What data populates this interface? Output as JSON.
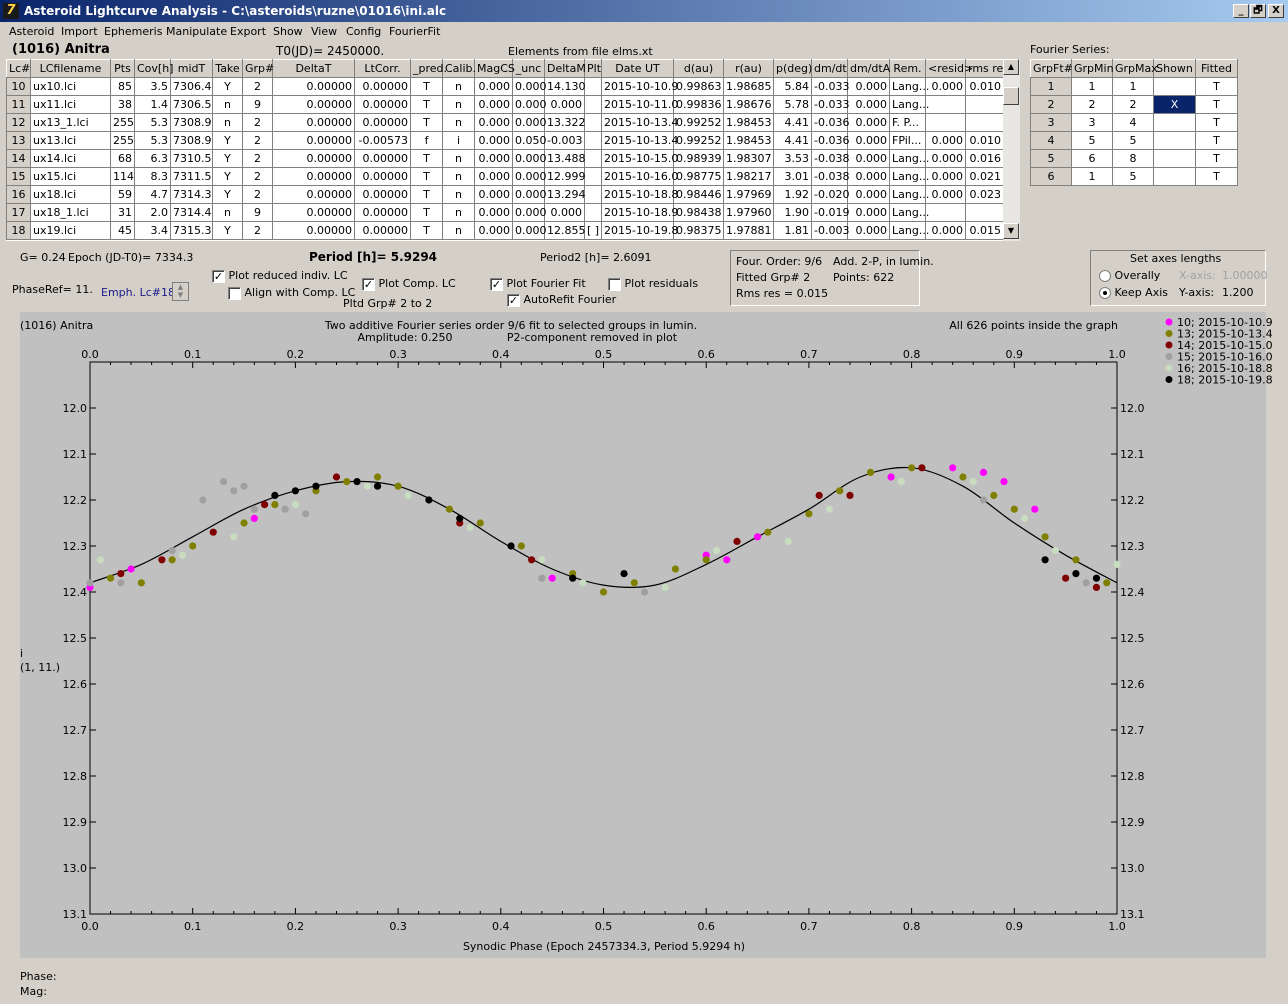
{
  "window": {
    "title": "Asteroid Lightcurve Analysis - C:\\asteroids\\ruzne\\01016\\ini.alc",
    "minimize": "_",
    "maximize": "🗗",
    "close": "X"
  },
  "menu": [
    "Asteroid",
    "Import",
    "Ephemeris",
    "Manipulate",
    "Export",
    "Show",
    "View",
    "Config",
    "FourierFit"
  ],
  "header": {
    "asteroid": "(1016) Anitra",
    "t0": "T0(JD)= 2450000.",
    "elements": "Elements from file elms.xt",
    "fourier_title": "Fourier Series:"
  },
  "lc_table": {
    "columns": [
      "Lc#",
      "LCfilename",
      "Pts",
      "Cov[h]",
      "midT",
      "Take",
      "Grp#",
      "DeltaT",
      "LtCorr.",
      "_pred.",
      "Calib.",
      "MagCS",
      "_unc",
      "DeltaM",
      "Plt",
      "Date UT",
      "d(au)",
      "r(au)",
      "p(deg)",
      "dm/dt",
      "dm/dtA",
      "Rem.",
      "<resid>",
      "rms res"
    ],
    "rows": [
      [
        "10",
        "ux10.lci",
        "85",
        "3.5",
        "7306.4",
        "Y",
        "2",
        "0.00000",
        "0.00000",
        "T",
        "n",
        "0.000",
        "0.000",
        "14.130",
        "",
        "2015-10-10.9",
        "0.99863",
        "1.98685",
        "5.84",
        "-0.033",
        "0.000",
        "Lang...",
        "0.000",
        "0.010"
      ],
      [
        "11",
        "ux11.lci",
        "38",
        "1.4",
        "7306.5",
        "n",
        "9",
        "0.00000",
        "0.00000",
        "T",
        "n",
        "0.000",
        "0.000",
        "0.000",
        "",
        "2015-10-11.0",
        "0.99836",
        "1.98676",
        "5.78",
        "-0.033",
        "0.000",
        "Lang...",
        "",
        ""
      ],
      [
        "12",
        "ux13_1.lci",
        "255",
        "5.3",
        "7308.9",
        "n",
        "2",
        "0.00000",
        "0.00000",
        "T",
        "n",
        "0.000",
        "0.000",
        "13.322",
        "",
        "2015-10-13.4",
        "0.99252",
        "1.98453",
        "4.41",
        "-0.036",
        "0.000",
        "F. P...",
        "",
        ""
      ],
      [
        "13",
        "ux13.lci",
        "255",
        "5.3",
        "7308.9",
        "Y",
        "2",
        "0.00000",
        "-0.00573",
        "f",
        "i",
        "0.000",
        "0.050",
        "-0.003",
        "",
        "2015-10-13.4",
        "0.99252",
        "1.98453",
        "4.41",
        "-0.036",
        "0.000",
        "FPil...",
        "0.000",
        "0.010"
      ],
      [
        "14",
        "ux14.lci",
        "68",
        "6.3",
        "7310.5",
        "Y",
        "2",
        "0.00000",
        "0.00000",
        "T",
        "n",
        "0.000",
        "0.000",
        "13.488",
        "",
        "2015-10-15.0",
        "0.98939",
        "1.98307",
        "3.53",
        "-0.038",
        "0.000",
        "Lang...",
        "0.000",
        "0.016"
      ],
      [
        "15",
        "ux15.lci",
        "114",
        "8.3",
        "7311.5",
        "Y",
        "2",
        "0.00000",
        "0.00000",
        "T",
        "n",
        "0.000",
        "0.000",
        "12.999",
        "",
        "2015-10-16.0",
        "0.98775",
        "1.98217",
        "3.01",
        "-0.038",
        "0.000",
        "Lang...",
        "0.000",
        "0.021"
      ],
      [
        "16",
        "ux18.lci",
        "59",
        "4.7",
        "7314.3",
        "Y",
        "2",
        "0.00000",
        "0.00000",
        "T",
        "n",
        "0.000",
        "0.000",
        "13.294",
        "",
        "2015-10-18.8",
        "0.98446",
        "1.97969",
        "1.92",
        "-0.020",
        "0.000",
        "Lang...",
        "0.000",
        "0.023"
      ],
      [
        "17",
        "ux18_1.lci",
        "31",
        "2.0",
        "7314.4",
        "n",
        "9",
        "0.00000",
        "0.00000",
        "T",
        "n",
        "0.000",
        "0.000",
        "0.000",
        "",
        "2015-10-18.9",
        "0.98438",
        "1.97960",
        "1.90",
        "-0.019",
        "0.000",
        "Lang...",
        "",
        ""
      ],
      [
        "18",
        "ux19.lci",
        "45",
        "3.4",
        "7315.3",
        "Y",
        "2",
        "0.00000",
        "0.00000",
        "T",
        "n",
        "0.000",
        "0.000",
        "12.855",
        "[ ]",
        "2015-10-19.8",
        "0.98375",
        "1.97881",
        "1.81",
        "-0.003",
        "0.000",
        "Lang...",
        "0.000",
        "0.015"
      ]
    ]
  },
  "fourier_table": {
    "columns": [
      "GrpFt#",
      "GrpMin",
      "GrpMax",
      "Shown",
      "Fitted"
    ],
    "rows": [
      [
        "1",
        "1",
        "1",
        "",
        "T"
      ],
      [
        "2",
        "2",
        "2",
        "X",
        "T"
      ],
      [
        "3",
        "3",
        "4",
        "",
        "T"
      ],
      [
        "4",
        "5",
        "5",
        "",
        "T"
      ],
      [
        "5",
        "6",
        "8",
        "",
        "T"
      ],
      [
        "6",
        "1",
        "5",
        "",
        "T"
      ]
    ]
  },
  "controls": {
    "g": "G= 0.24",
    "epoch": "Epoch (JD-T0)= 7334.3",
    "period": "Period [h]= 5.9294",
    "period2": "Period2 [h]= 2.6091",
    "phaseref": "PhaseRef= 11.",
    "emph": "Emph. Lc#18:",
    "plot_reduced": "Plot reduced indiv. LC",
    "align_comp": "Align with Comp. LC",
    "plot_comp": "Plot Comp. LC",
    "pltd_grp": "Pltd Grp#  2  to   2",
    "plot_fourier": "Plot Fourier Fit",
    "autorefit": "AutoRefit Fourier",
    "plot_resid": "Plot residuals",
    "four_order": "Four. Order:  9/6",
    "add2p": "Add. 2-P, in lumin.",
    "fitted_grp": "Fitted Grp# 2",
    "points": "Points: 622",
    "rms": "Rms res     = 0.015",
    "axes_title": "Set axes lengths",
    "overally": "Overally",
    "keep_axis": "Keep Axis",
    "xaxis_lbl": "X-axis:",
    "xaxis_val": "1.00000",
    "yaxis_lbl": "Y-axis:",
    "yaxis_val": "1.200"
  },
  "plot": {
    "name": "(1016) Anitra",
    "line1": "Two additive Fourier series order 9/6 fit to selected groups in lumin.",
    "amplitude": "Amplitude: 0.250",
    "p2": "P2-component removed in plot",
    "inside": "All 626 points inside the graph",
    "ylabel1": "i",
    "ylabel2": "(1, 11.)",
    "xlabel": "Synodic Phase (Epoch 2457334.3, Period 5.9294 h)"
  },
  "status": {
    "phase": "Phase:",
    "mag": "Mag:"
  },
  "chart_data": {
    "type": "scatter",
    "xlim": [
      0,
      1
    ],
    "ylim": [
      13.1,
      11.9
    ],
    "y_inverted": true,
    "x_ticks": [
      "0.0",
      "0.1",
      "0.2",
      "0.3",
      "0.4",
      "0.5",
      "0.6",
      "0.7",
      "0.8",
      "0.9",
      "1.0"
    ],
    "y_ticks": [
      "12.0",
      "12.1",
      "12.2",
      "12.3",
      "12.4",
      "12.5",
      "12.6",
      "12.7",
      "12.8",
      "12.9",
      "13.0",
      "13.1"
    ],
    "fit_curve": {
      "x": [
        0,
        0.05,
        0.1,
        0.15,
        0.2,
        0.25,
        0.3,
        0.35,
        0.4,
        0.45,
        0.5,
        0.55,
        0.6,
        0.65,
        0.7,
        0.75,
        0.8,
        0.85,
        0.9,
        0.95,
        1.0
      ],
      "y": [
        12.38,
        12.34,
        12.28,
        12.22,
        12.18,
        12.16,
        12.17,
        12.22,
        12.29,
        12.35,
        12.385,
        12.385,
        12.34,
        12.28,
        12.22,
        12.15,
        12.13,
        12.17,
        12.25,
        12.32,
        12.38
      ]
    },
    "series": [
      {
        "name": "10; 2015-10-10.9",
        "color": "#ff00ff",
        "x": [
          0.0,
          0.04,
          0.16,
          0.45,
          0.6,
          0.62,
          0.65,
          0.78,
          0.84,
          0.87,
          0.89,
          0.92
        ],
        "y": [
          12.39,
          12.35,
          12.24,
          12.37,
          12.32,
          12.33,
          12.28,
          12.15,
          12.13,
          12.14,
          12.16,
          12.22
        ]
      },
      {
        "name": "13; 2015-10-13.4",
        "color": "#808000",
        "x": [
          0.02,
          0.05,
          0.08,
          0.1,
          0.15,
          0.18,
          0.22,
          0.25,
          0.28,
          0.3,
          0.35,
          0.38,
          0.42,
          0.47,
          0.5,
          0.53,
          0.57,
          0.6,
          0.66,
          0.7,
          0.73,
          0.76,
          0.8,
          0.85,
          0.88,
          0.9,
          0.93,
          0.96,
          0.99
        ],
        "y": [
          12.37,
          12.38,
          12.33,
          12.3,
          12.25,
          12.21,
          12.18,
          12.16,
          12.15,
          12.17,
          12.22,
          12.25,
          12.3,
          12.36,
          12.4,
          12.38,
          12.35,
          12.33,
          12.27,
          12.23,
          12.18,
          12.14,
          12.13,
          12.15,
          12.19,
          12.22,
          12.28,
          12.33,
          12.38
        ]
      },
      {
        "name": "14; 2015-10-15.0",
        "color": "#800000",
        "x": [
          0.03,
          0.07,
          0.12,
          0.17,
          0.24,
          0.36,
          0.43,
          0.63,
          0.71,
          0.74,
          0.81,
          0.95,
          0.98
        ],
        "y": [
          12.36,
          12.33,
          12.27,
          12.21,
          12.15,
          12.25,
          12.33,
          12.29,
          12.19,
          12.19,
          12.13,
          12.37,
          12.39
        ]
      },
      {
        "name": "15; 2015-10-16.0",
        "color": "#a0a0a0",
        "x": [
          0.0,
          0.03,
          0.08,
          0.11,
          0.13,
          0.14,
          0.15,
          0.16,
          0.19,
          0.21,
          0.44,
          0.54,
          0.87,
          0.97
        ],
        "y": [
          12.38,
          12.38,
          12.31,
          12.2,
          12.16,
          12.18,
          12.17,
          12.22,
          12.22,
          12.23,
          12.37,
          12.4,
          12.2,
          12.38
        ]
      },
      {
        "name": "16; 2015-10-18.8",
        "color": "#c8dcc0",
        "x": [
          0.01,
          0.09,
          0.14,
          0.2,
          0.27,
          0.31,
          0.37,
          0.44,
          0.48,
          0.56,
          0.61,
          0.68,
          0.72,
          0.79,
          0.86,
          0.91,
          0.94,
          1.0
        ],
        "y": [
          12.33,
          12.32,
          12.28,
          12.21,
          12.17,
          12.19,
          12.26,
          12.33,
          12.38,
          12.39,
          12.31,
          12.29,
          12.22,
          12.16,
          12.16,
          12.24,
          12.31,
          12.34
        ]
      },
      {
        "name": "18; 2015-10-19.8",
        "color": "#000000",
        "x": [
          0.18,
          0.2,
          0.22,
          0.26,
          0.28,
          0.33,
          0.36,
          0.41,
          0.47,
          0.52,
          0.93,
          0.96,
          0.98
        ],
        "y": [
          12.19,
          12.18,
          12.17,
          12.16,
          12.17,
          12.2,
          12.24,
          12.3,
          12.37,
          12.36,
          12.33,
          12.36,
          12.37
        ]
      }
    ]
  }
}
